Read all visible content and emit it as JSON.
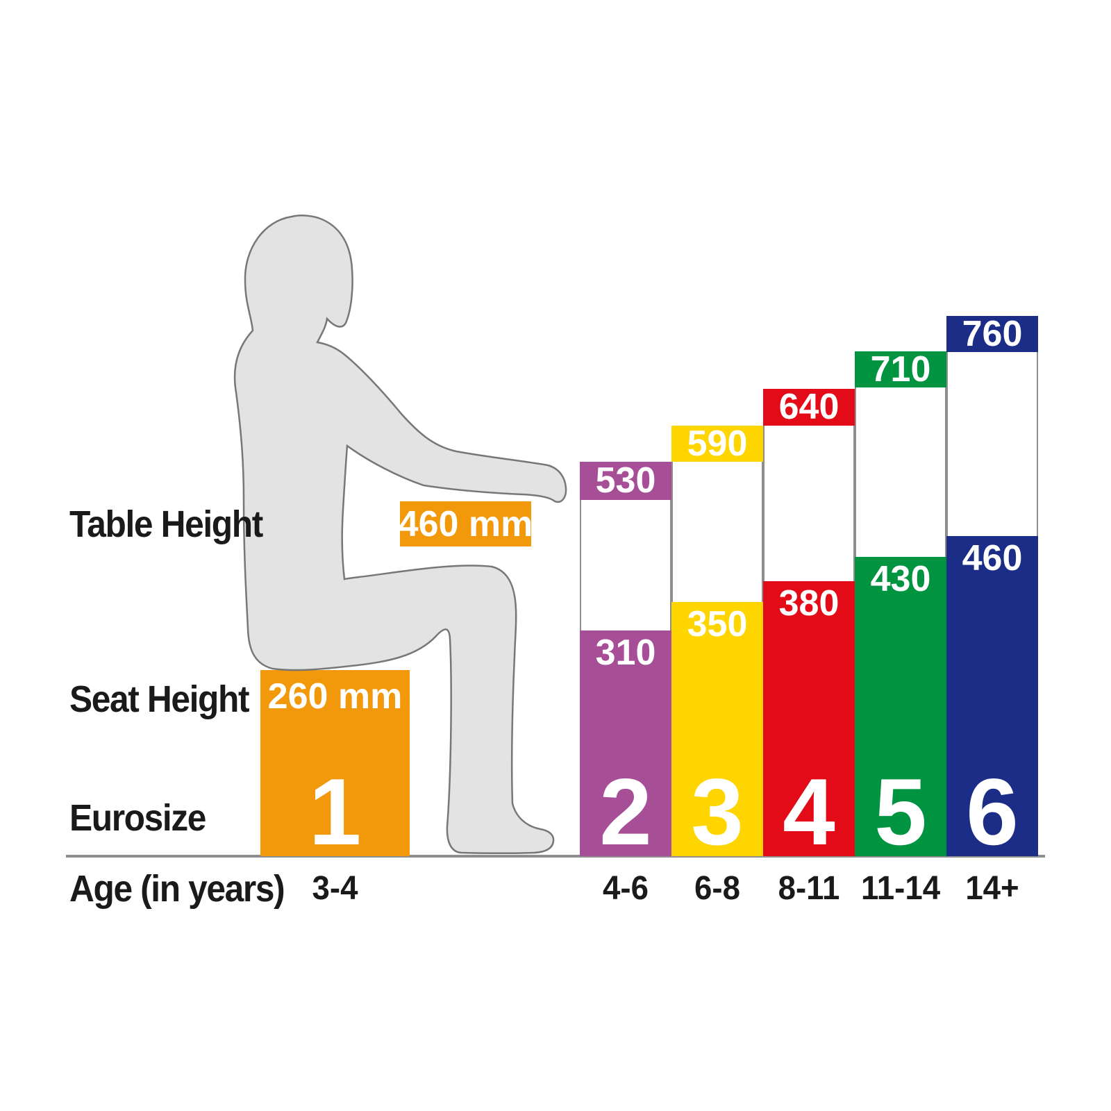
{
  "labels": {
    "table_height": "Table Height",
    "seat_height": "Seat Height",
    "eurosize": "Eurosize",
    "age": "Age (in years)"
  },
  "size1": {
    "eurosize": "1",
    "age": "3-4",
    "table_height_label": "460 mm",
    "seat_height_label": "260 mm",
    "color": "#F2980B"
  },
  "columns": [
    {
      "eurosize": "2",
      "age": "4-6",
      "table_height": "530",
      "seat_height": "310",
      "color": "#A64E96"
    },
    {
      "eurosize": "3",
      "age": "6-8",
      "table_height": "590",
      "seat_height": "350",
      "color": "#FFD500"
    },
    {
      "eurosize": "4",
      "age": "8-11",
      "table_height": "640",
      "seat_height": "380",
      "color": "#E30B17"
    },
    {
      "eurosize": "5",
      "age": "11-14",
      "table_height": "710",
      "seat_height": "430",
      "color": "#009440"
    },
    {
      "eurosize": "6",
      "age": "14+",
      "table_height": "760",
      "seat_height": "460",
      "color": "#1B2D87"
    }
  ],
  "silhouette": {
    "fill": "#E2E3E2",
    "stroke": "#777777"
  },
  "baseline_color": "#8E8E8E",
  "text_colors": {
    "label": "#1A1A1A",
    "value": "#FFFFFF"
  },
  "chart_data": {
    "type": "bar",
    "categories": [
      "1",
      "2",
      "3",
      "4",
      "5",
      "6"
    ],
    "series": [
      {
        "name": "Seat Height (mm)",
        "values": [
          260,
          310,
          350,
          380,
          430,
          460
        ]
      },
      {
        "name": "Table Height (mm)",
        "values": [
          460,
          530,
          590,
          640,
          710,
          760
        ]
      }
    ],
    "age_ranges": [
      "3-4",
      "4-6",
      "6-8",
      "8-11",
      "11-14",
      "14+"
    ],
    "title": "",
    "xlabel": "Age (in years)",
    "ylabel": "",
    "units": "mm",
    "grid": false,
    "legend_position": "none",
    "bar_colors": [
      "#F2980B",
      "#A64E96",
      "#FFD500",
      "#E30B17",
      "#009440",
      "#1B2D87"
    ]
  }
}
